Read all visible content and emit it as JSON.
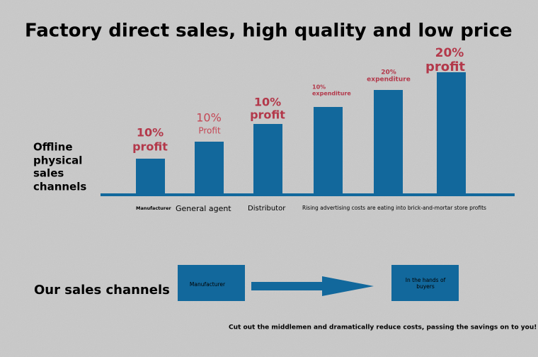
{
  "header": {
    "title": "Factory direct sales, high quality and low price"
  },
  "offline": {
    "label": [
      "Offline",
      "physical",
      "sales",
      "channels"
    ]
  },
  "bars": [
    {
      "top": "10%",
      "bottom": "profit",
      "category": "Manufacturer"
    },
    {
      "top": "10%",
      "bottom": "Profit",
      "category": "General agent"
    },
    {
      "top": "10%",
      "bottom": "profit",
      "category": "Distributor"
    },
    {
      "top": "10%",
      "bottom": "expenditure",
      "category": "Rising advertising costs are eating into brick-and-mortar store profits"
    },
    {
      "top": "20%",
      "bottom": "expenditure"
    },
    {
      "top": "20%",
      "bottom": "profit"
    }
  ],
  "ours": {
    "label": "Our sales channels",
    "from": "Manufacturer",
    "to": [
      "In the hands of",
      "buyers"
    ],
    "footer": "Cut out the middlemen and dramatically reduce costs, passing the savings on to you!"
  }
}
